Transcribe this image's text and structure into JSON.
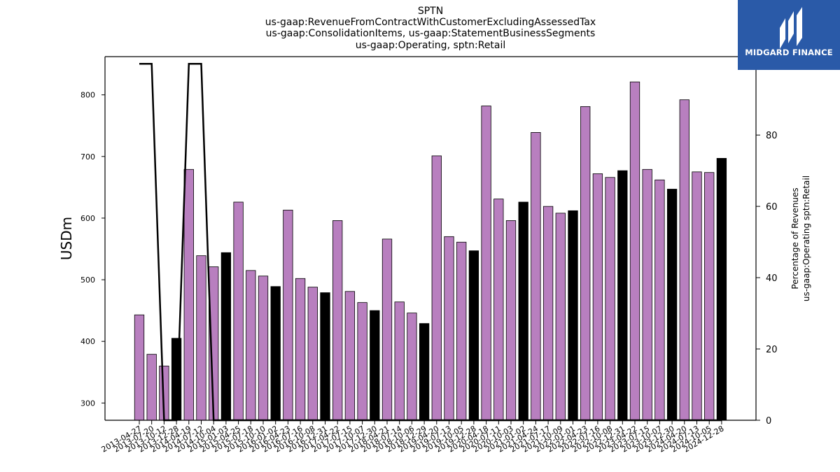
{
  "chart_data": {
    "type": "bar",
    "title_lines": [
      "SPTN",
      "us-gaap:RevenueFromContractWithCustomerExcludingAssessedTax",
      "us-gaap:ConsolidationItems, us-gaap:StatementBusinessSegments",
      "us-gaap:Operating, sptn:Retail"
    ],
    "ylabel": "USDm",
    "y2label_lines": [
      "Percentage of Revenues",
      "us-gaap:Operating sptn:Retail"
    ],
    "ylim": [
      272,
      862
    ],
    "y2lim": [
      0,
      102
    ],
    "yticks": [
      300,
      400,
      500,
      600,
      700,
      800
    ],
    "y2ticks": [
      0,
      20,
      40,
      60,
      80,
      100
    ],
    "categories": [
      "2013-04-27",
      "2013-07-20",
      "2013-10-12",
      "2013-12-28",
      "2014-04-19",
      "2014-07-12",
      "2014-10-04",
      "2015-01-03",
      "2015-04-25",
      "2015-07-18",
      "2015-10-10",
      "2016-01-02",
      "2016-04-23",
      "2016-07-16",
      "2016-10-08",
      "2016-12-31",
      "2017-04-22",
      "2017-07-15",
      "2017-10-07",
      "2017-12-30",
      "2018-04-21",
      "2018-07-14",
      "2018-10-06",
      "2018-12-29",
      "2019-04-20",
      "2019-07-13",
      "2019-10-05",
      "2019-12-28",
      "2020-04-18",
      "2020-07-11",
      "2020-10-03",
      "2021-01-02",
      "2021-04-24",
      "2021-07-17",
      "2021-10-09",
      "2022-01-01",
      "2022-04-23",
      "2022-07-16",
      "2022-10-08",
      "2022-12-31",
      "2023-04-22",
      "2023-07-15",
      "2023-10-07",
      "2023-12-30",
      "2024-04-20",
      "2024-07-13",
      "2024-10-05",
      "2024-12-28"
    ],
    "series": [
      {
        "values": [
          443,
          379,
          360,
          405,
          679,
          539,
          521,
          544,
          626,
          515,
          506,
          489,
          613,
          502,
          488,
          479,
          596,
          481,
          463,
          450,
          566,
          464,
          446,
          429,
          701,
          570,
          561,
          547,
          782,
          631,
          596,
          626,
          739,
          619,
          608,
          612,
          781,
          672,
          666,
          677,
          821,
          679,
          662,
          647,
          792,
          675,
          674,
          697
        ],
        "bar_colors": [
          "#b87fbf",
          "#b87fbf",
          "#b87fbf",
          "#000000",
          "#b87fbf",
          "#b87fbf",
          "#b87fbf",
          "#000000",
          "#b87fbf",
          "#b87fbf",
          "#b87fbf",
          "#000000",
          "#b87fbf",
          "#b87fbf",
          "#b87fbf",
          "#000000",
          "#b87fbf",
          "#b87fbf",
          "#b87fbf",
          "#000000",
          "#b87fbf",
          "#b87fbf",
          "#b87fbf",
          "#000000",
          "#b87fbf",
          "#b87fbf",
          "#b87fbf",
          "#000000",
          "#b87fbf",
          "#b87fbf",
          "#b87fbf",
          "#000000",
          "#b87fbf",
          "#b87fbf",
          "#b87fbf",
          "#000000",
          "#b87fbf",
          "#b87fbf",
          "#b87fbf",
          "#000000",
          "#b87fbf",
          "#b87fbf",
          "#b87fbf",
          "#000000",
          "#b87fbf",
          "#b87fbf",
          "#b87fbf",
          "#000000"
        ]
      },
      {
        "axis": "right",
        "line_color": "#000000",
        "values": [
          100,
          100,
          0,
          0,
          100,
          100,
          0,
          0,
          0,
          0,
          0,
          0,
          0,
          0,
          0,
          0,
          0,
          0,
          0,
          0,
          0,
          0,
          0,
          0,
          0,
          0,
          0,
          0,
          0,
          0,
          0,
          0,
          0,
          0,
          0,
          0,
          0,
          0,
          0,
          0,
          0,
          0,
          0,
          0,
          0,
          0,
          0,
          0
        ]
      }
    ]
  },
  "logo": {
    "text": "MIDGARD FINANCE",
    "background": "#2a5aa8"
  }
}
